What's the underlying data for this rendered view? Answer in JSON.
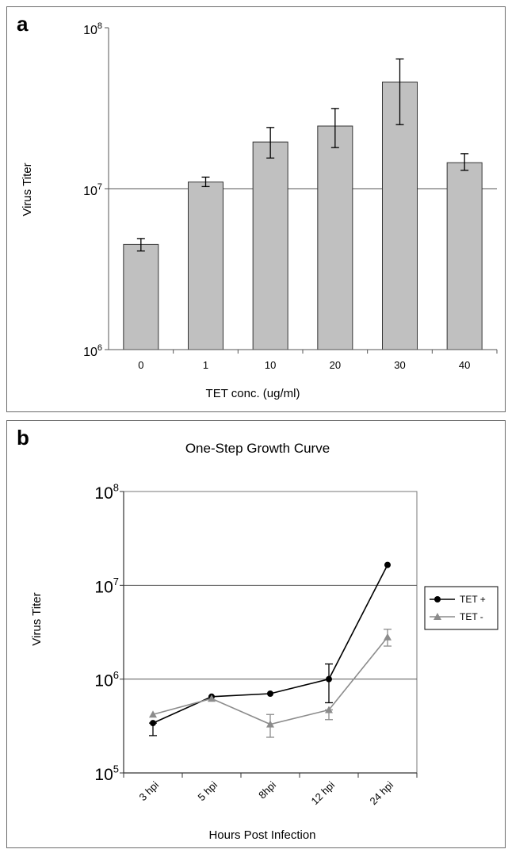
{
  "panel_labels": {
    "a": "a",
    "b": "b"
  },
  "chart_data": [
    {
      "type": "bar",
      "panel": "a",
      "title": "",
      "xlabel": "TET conc. (ug/ml)",
      "ylabel": "Virus Titer",
      "yscale": "log",
      "ylim": [
        1000000,
        100000000
      ],
      "y_ticks": [
        {
          "value": 1000000,
          "base": "10",
          "exp": "6"
        },
        {
          "value": 10000000,
          "base": "10",
          "exp": "7"
        },
        {
          "value": 100000000,
          "base": "10",
          "exp": "8"
        }
      ],
      "grid_y": [
        10000000
      ],
      "categories": [
        "0",
        "1",
        "10",
        "20",
        "30",
        "40"
      ],
      "values": [
        4500000,
        11000000,
        19500000,
        24500000,
        46000000,
        14500000
      ],
      "error_low": [
        4100000,
        10300000,
        15500000,
        18000000,
        25000000,
        13000000
      ],
      "error_high": [
        4900000,
        11800000,
        24000000,
        31500000,
        64000000,
        16500000
      ],
      "bar_color": "#c0c0c0"
    },
    {
      "type": "line",
      "panel": "b",
      "title": "One-Step Growth Curve",
      "xlabel": "Hours Post Infection",
      "ylabel": "Virus Titer",
      "yscale": "log",
      "ylim": [
        100000,
        100000000
      ],
      "y_ticks": [
        {
          "value": 100000,
          "base": "10",
          "exp": "5"
        },
        {
          "value": 1000000,
          "base": "10",
          "exp": "6"
        },
        {
          "value": 10000000,
          "base": "10",
          "exp": "7"
        },
        {
          "value": 100000000,
          "base": "10",
          "exp": "8"
        }
      ],
      "grid_y": [
        1000000,
        10000000
      ],
      "categories": [
        "3 hpi",
        "5 hpi",
        "8hpi",
        "12 hpi",
        "24 hpi"
      ],
      "legend_position": "right",
      "series": [
        {
          "name": "TET +",
          "color": "#000000",
          "marker": "circle",
          "values": [
            340000,
            650000,
            700000,
            1000000,
            16500000
          ],
          "error_low": [
            250000,
            650000,
            700000,
            560000,
            16500000
          ],
          "error_high": [
            340000,
            650000,
            700000,
            1450000,
            16500000
          ]
        },
        {
          "name": "TET -",
          "color": "#8c8c8c",
          "marker": "triangle",
          "values": [
            420000,
            620000,
            330000,
            470000,
            2800000
          ],
          "error_low": [
            420000,
            620000,
            240000,
            370000,
            2250000
          ],
          "error_high": [
            420000,
            620000,
            420000,
            470000,
            3400000
          ]
        }
      ]
    }
  ]
}
